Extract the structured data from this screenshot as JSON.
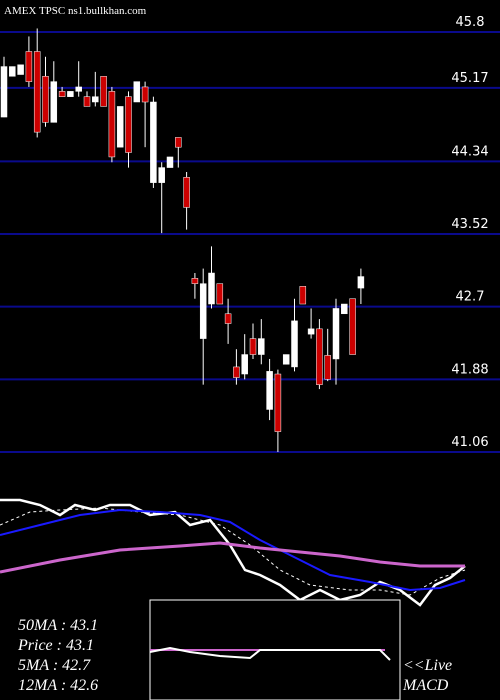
{
  "chart_data": {
    "type": "candlestick",
    "title": "AMEX  TPSC ns1.bullkhan.com",
    "open": [
      44.84,
      45.3,
      45.32,
      45.58,
      45.58,
      45.3,
      44.78,
      45.13,
      45.07,
      45.13,
      45.07,
      45.01,
      45.3,
      45.13,
      44.5,
      45.07,
      45.01,
      45.18,
      44.1,
      44.1,
      44.27,
      44.61,
      44.16,
      43.02,
      42.34,
      42.73,
      42.96,
      42.62,
      42.02,
      41.94,
      42.34,
      42.16,
      41.54,
      41.94,
      42.05,
      42.02,
      42.93,
      42.39,
      42.45,
      42.15,
      42.11,
      42.62,
      42.79,
      42.91
    ],
    "high": [
      45.52,
      45.41,
      45.43,
      45.75,
      45.84,
      45.52,
      45.47,
      45.18,
      45.13,
      45.47,
      45.13,
      45.35,
      45.3,
      45.18,
      44.96,
      45.13,
      45.24,
      45.24,
      45.07,
      44.33,
      44.39,
      44.61,
      44.22,
      43.08,
      43.13,
      43.38,
      42.96,
      42.79,
      42.22,
      42.39,
      42.51,
      42.56,
      42.11,
      41.99,
      42.16,
      42.79,
      42.93,
      42.68,
      42.56,
      42.45,
      42.79,
      42.73,
      42.79,
      43.13
    ],
    "low": [
      44.84,
      45.3,
      45.32,
      45.18,
      44.61,
      44.73,
      44.78,
      45.07,
      45.07,
      45.07,
      44.96,
      44.96,
      44.96,
      44.33,
      44.5,
      44.27,
      45.01,
      44.5,
      44.04,
      43.53,
      44.27,
      44.27,
      43.57,
      42.79,
      41.82,
      42.68,
      42.73,
      42.28,
      41.82,
      41.88,
      42.11,
      42.05,
      41.42,
      41.06,
      42.05,
      41.97,
      42.73,
      42.34,
      41.77,
      41.86,
      41.82,
      42.62,
      42.16,
      42.73
    ],
    "close": [
      45.41,
      45.41,
      45.43,
      45.24,
      44.67,
      44.78,
      45.24,
      45.07,
      45.13,
      45.18,
      44.96,
      45.07,
      44.96,
      44.39,
      44.96,
      44.44,
      45.24,
      45.01,
      45.01,
      44.27,
      44.39,
      44.5,
      43.82,
      42.96,
      42.96,
      43.08,
      42.73,
      42.51,
      41.9,
      42.16,
      42.16,
      42.34,
      41.97,
      41.29,
      42.16,
      42.54,
      42.73,
      42.45,
      41.82,
      41.88,
      42.68,
      42.73,
      42.16,
      43.04
    ],
    "up_color": "#ffffff",
    "down_color": "#cc0000",
    "grid": true,
    "grid_color": "#0a0a8c",
    "ylim": [
      41.06,
      45.8
    ],
    "yticks": [
      45.8,
      45.17,
      44.34,
      43.52,
      42.7,
      41.88,
      41.06
    ],
    "stats": [
      "50MA   : 43.1",
      "Price   : 43.1",
      "5MA    : 42.7",
      "12MA  : 42.6"
    ],
    "live": "<<Live",
    "macd": "MACD"
  }
}
